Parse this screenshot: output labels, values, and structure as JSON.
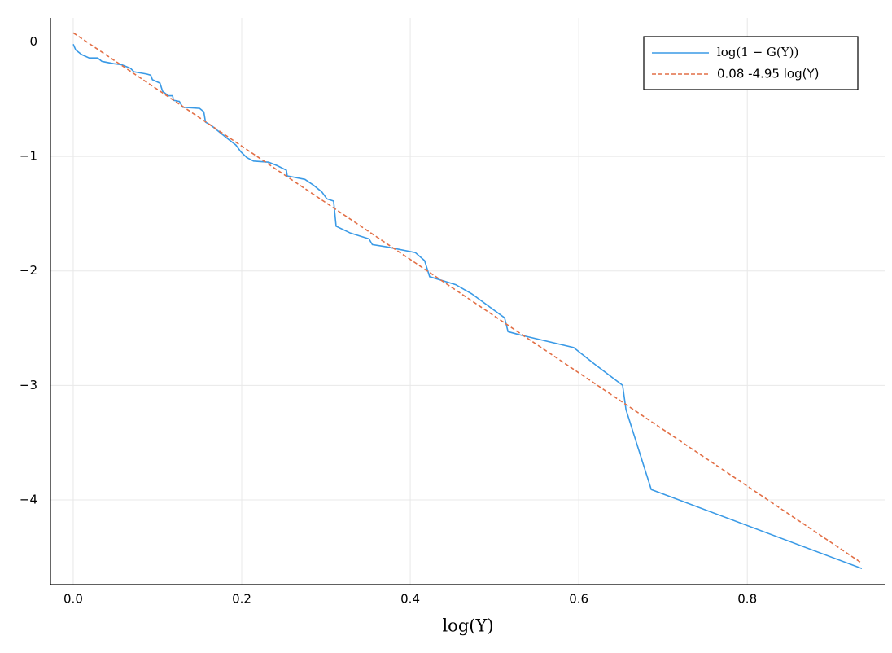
{
  "chart_data": {
    "type": "line",
    "xlabel": "log(Y)",
    "xlim": [
      -0.027,
      0.964
    ],
    "ylim": [
      -4.74,
      0.21
    ],
    "xticks": [
      {
        "value": 0,
        "label": "0.0"
      },
      0.2,
      0.4,
      0.6,
      0.8
    ],
    "yticks": [
      {
        "value": -4,
        "label": "−4"
      },
      {
        "value": -3,
        "label": "−3"
      },
      {
        "value": -2,
        "label": "−2"
      },
      {
        "value": -1,
        "label": "−1"
      },
      0
    ],
    "grid": true,
    "legend": "top-right",
    "series": [
      {
        "name": "log(1 − G(Y))",
        "color": "#3a9ae6",
        "style": "solid",
        "x": [
          0,
          0.003,
          0.01,
          0.019,
          0.029,
          0.034,
          0.048,
          0.058,
          0.068,
          0.072,
          0.087,
          0.092,
          0.094,
          0.103,
          0.106,
          0.113,
          0.118,
          0.119,
          0.126,
          0.13,
          0.15,
          0.155,
          0.157,
          0.164,
          0.174,
          0.184,
          0.193,
          0.199,
          0.206,
          0.214,
          0.232,
          0.242,
          0.253,
          0.254,
          0.275,
          0.285,
          0.295,
          0.301,
          0.309,
          0.312,
          0.329,
          0.351,
          0.355,
          0.372,
          0.406,
          0.417,
          0.423,
          0.454,
          0.473,
          0.512,
          0.516,
          0.531,
          0.594,
          0.618,
          0.652,
          0.656,
          0.686,
          0.936
        ],
        "values": [
          -0.02,
          -0.07,
          -0.11,
          -0.14,
          -0.14,
          -0.17,
          -0.19,
          -0.2,
          -0.23,
          -0.26,
          -0.28,
          -0.29,
          -0.33,
          -0.36,
          -0.43,
          -0.47,
          -0.47,
          -0.51,
          -0.52,
          -0.57,
          -0.58,
          -0.61,
          -0.7,
          -0.73,
          -0.79,
          -0.85,
          -0.9,
          -0.96,
          -1.01,
          -1.04,
          -1.05,
          -1.08,
          -1.12,
          -1.17,
          -1.2,
          -1.25,
          -1.31,
          -1.37,
          -1.39,
          -1.61,
          -1.67,
          -1.72,
          -1.77,
          -1.79,
          -1.84,
          -1.91,
          -2.05,
          -2.12,
          -2.2,
          -2.41,
          -2.53,
          -2.56,
          -2.67,
          -2.81,
          -3.0,
          -3.21,
          -3.91,
          -4.6
        ]
      },
      {
        "name": "0.08 -4.95 log(Y)",
        "color": "#e26f46",
        "style": "dashed",
        "x": [
          0,
          0.936
        ],
        "values": [
          0.08,
          -4.553
        ]
      }
    ]
  }
}
